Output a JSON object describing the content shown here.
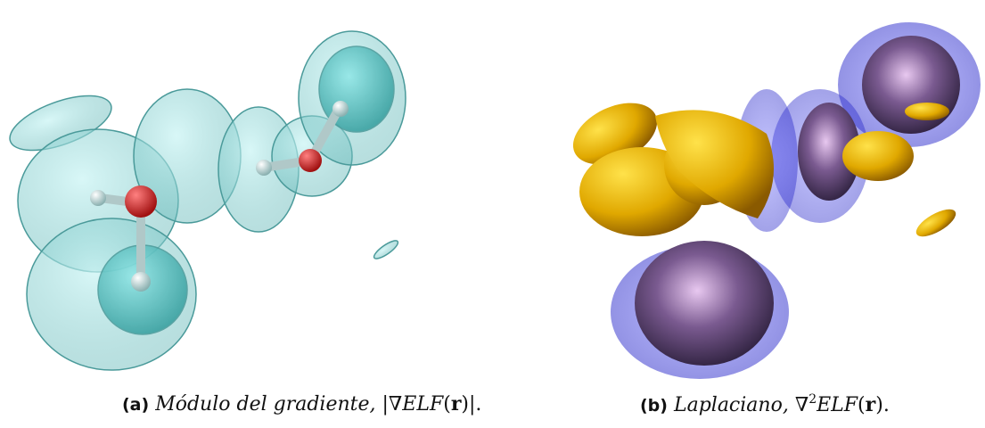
{
  "figures": [
    {
      "label": "(a)",
      "caption": "Módulo del gradiente,",
      "formula": [
        {
          "text": "|∇"
        },
        {
          "text": "ELF",
          "style": "italic"
        },
        {
          "text": "("
        },
        {
          "text": "r",
          "style": "bold"
        },
        {
          "text": ")|."
        }
      ]
    },
    {
      "label": "(b)",
      "caption": "Laplaciano,",
      "formula": [
        {
          "text": "∇"
        },
        {
          "text": "2",
          "style": "sup"
        },
        {
          "text": "ELF",
          "style": "italic"
        },
        {
          "text": "("
        },
        {
          "text": "r",
          "style": "bold"
        },
        {
          "text": ")."
        }
      ]
    }
  ]
}
